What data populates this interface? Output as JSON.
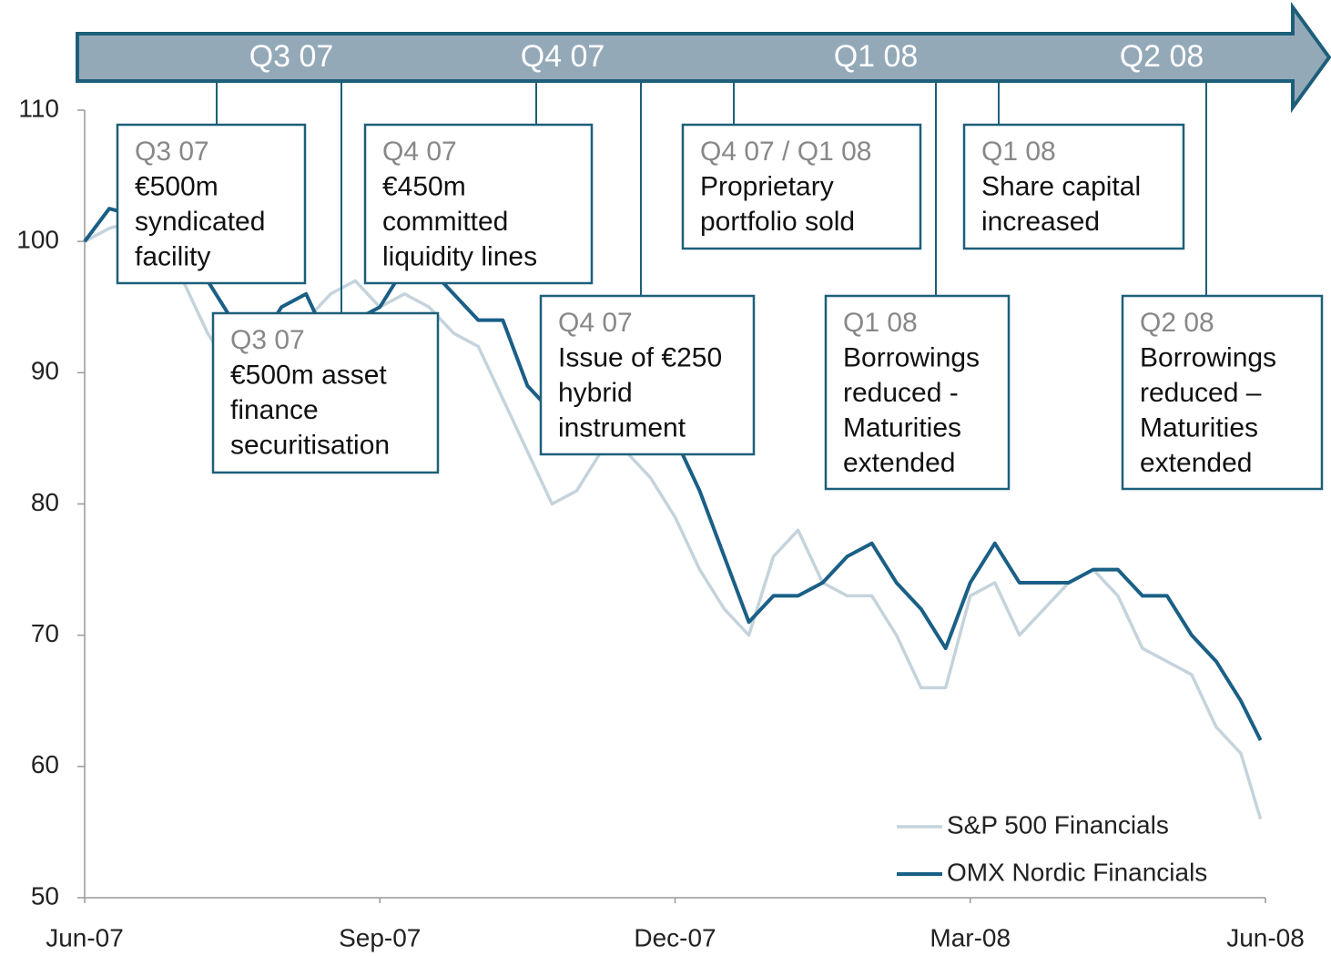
{
  "chart_data": {
    "type": "line",
    "timeline": [
      "Q3 07",
      "Q4 07",
      "Q1 08",
      "Q2 08"
    ],
    "annotations": [
      {
        "lines": [
          "Q3 07",
          "€500m",
          "syndicated",
          "facility"
        ]
      },
      {
        "lines": [
          "Q3 07",
          "€500m asset",
          "finance",
          "securitisation"
        ]
      },
      {
        "lines": [
          "Q4 07",
          "€450m",
          "committed",
          "liquidity lines"
        ]
      },
      {
        "lines": [
          "Q4 07",
          "Issue of €250",
          "hybrid",
          "instrument"
        ]
      },
      {
        "lines": [
          "Q4 07 / Q1 08",
          "Proprietary",
          "portfolio sold"
        ]
      },
      {
        "lines": [
          "Q1 08",
          "Borrowings",
          "reduced -",
          "Maturities",
          "extended"
        ]
      },
      {
        "lines": [
          "Q1 08",
          "Share capital",
          "increased"
        ]
      },
      {
        "lines": [
          "Q2 08",
          "Borrowings",
          "reduced –",
          "Maturities",
          "extended"
        ]
      }
    ],
    "x": [
      0,
      0.25,
      0.5,
      0.75,
      1,
      1.25,
      1.5,
      1.75,
      2,
      2.25,
      2.5,
      2.75,
      3,
      3.25,
      3.5,
      3.75,
      4,
      4.25,
      4.5,
      4.75,
      5,
      5.25,
      5.5,
      5.75,
      6,
      6.25,
      6.5,
      6.75,
      7,
      7.25,
      7.5,
      7.75,
      8,
      8.25,
      8.5,
      8.75,
      9,
      9.25,
      9.5,
      9.75,
      10,
      10.25,
      10.5,
      10.75,
      11,
      11.25,
      11.5,
      11.75,
      11.95
    ],
    "series": [
      {
        "name": "S&P 500 Financials",
        "color": "#c5d3dc",
        "values": [
          100,
          101,
          101.5,
          100,
          97,
          93,
          90,
          93,
          93,
          94,
          96,
          97,
          95,
          96,
          95,
          93,
          92,
          88,
          84,
          80,
          81,
          84,
          84,
          82,
          79,
          75,
          72,
          70,
          76,
          78,
          74,
          73,
          73,
          70,
          66,
          66,
          73,
          74,
          70,
          72,
          74,
          75,
          73,
          69,
          68,
          67,
          63,
          61,
          56
        ]
      },
      {
        "name": "OMX Nordic Financials",
        "color": "#1a5f86",
        "values": [
          100,
          102.5,
          102,
          101,
          99,
          97,
          94,
          92,
          95,
          96,
          92,
          94,
          95,
          98,
          98,
          96,
          94,
          94,
          89,
          87,
          84,
          85,
          85,
          84,
          85,
          81,
          76,
          71,
          73,
          73,
          74,
          76,
          77,
          74,
          72,
          69,
          74,
          77,
          74,
          74,
          74,
          75,
          75,
          73,
          73,
          70,
          68,
          65,
          62
        ]
      }
    ],
    "xlim": [
      0,
      12
    ],
    "xticks": [
      {
        "value": 0,
        "label": "Jun-07"
      },
      {
        "value": 3,
        "label": "Sep-07"
      },
      {
        "value": 6,
        "label": "Dec-07"
      },
      {
        "value": 9,
        "label": "Mar-08"
      },
      {
        "value": 12,
        "label": "Jun-08"
      }
    ],
    "ylim": [
      50,
      110
    ],
    "yticks": [
      50,
      60,
      70,
      80,
      90,
      100,
      110
    ],
    "legend": "lower right"
  }
}
